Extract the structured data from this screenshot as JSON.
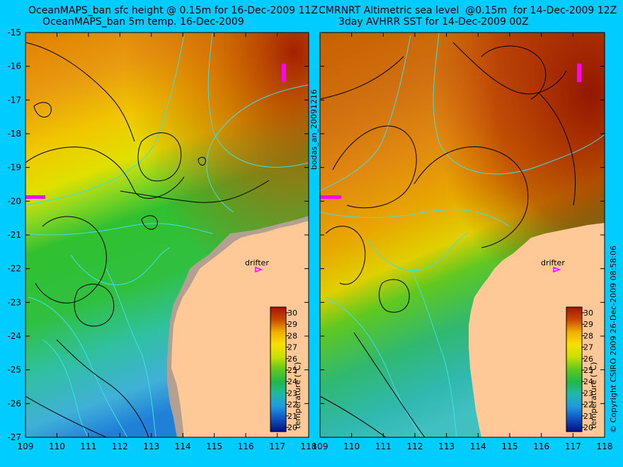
{
  "left_panel": {
    "title_line1": "OceanMAPS_ban sfc height @ 0.15m for 16-Dec-2009 11Z",
    "title_line2": "OceanMAPS_ban 5m temp. 16-Dec-2009",
    "side_label": "bodas_an_20091216",
    "annotation": "drifter"
  },
  "right_panel": {
    "title_line1": "CMRNRT Altimetric sea level  @0.15m  for 14-Dec-2009 12Z",
    "title_line2": "3day AVHRR SST for 14-Dec-2009 00Z",
    "side_label": "© Copyright CSIRO 2009   26-Dec-2009 08:58:06",
    "annotation": "drifter"
  },
  "axes": {
    "lon_ticks": [
      "109",
      "110",
      "111",
      "112",
      "113",
      "114",
      "115",
      "116",
      "117",
      "118"
    ],
    "lat_ticks": [
      "-15",
      "-16",
      "-17",
      "-18",
      "-19",
      "-20",
      "-21",
      "-22",
      "-23",
      "-24",
      "-25",
      "-26",
      "-27"
    ],
    "lon_range": [
      109,
      118
    ],
    "lat_range": [
      -15,
      -27
    ]
  },
  "colorbar": {
    "label": "temperature (°C)",
    "ticks": [
      "30",
      "29",
      "28",
      "27",
      "26",
      "25",
      "24",
      "23",
      "22",
      "21",
      "20"
    ],
    "colors": [
      "#a01800",
      "#c84800",
      "#e08000",
      "#f0b000",
      "#f8e000",
      "#c8e000",
      "#60c820",
      "#20b848",
      "#20b8a8",
      "#2098e0",
      "#1050c0",
      "#001080"
    ]
  },
  "colors": {
    "background": "#00ccff",
    "land": "#ffc896",
    "land_grey": "#b4a090",
    "contour": "#000000",
    "bathymetry": "#40e0e0",
    "drifter": "#ff00ff"
  }
}
